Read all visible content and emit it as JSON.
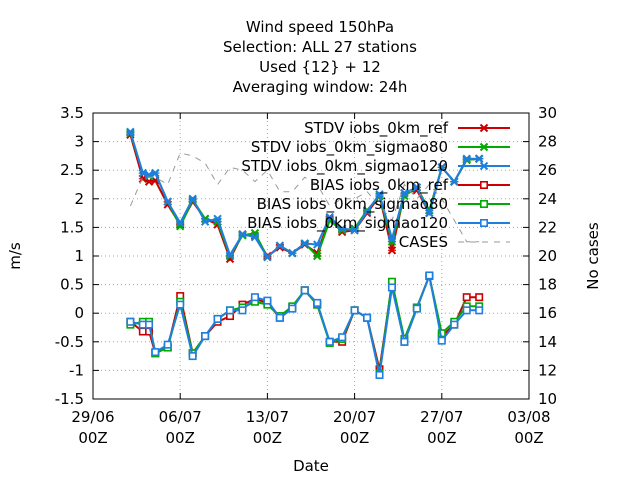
{
  "chart_data": {
    "type": "line",
    "title_lines": [
      "Wind speed 150hPa",
      "Selection: ALL      27 stations",
      "Used {12} + 12",
      "Averaging window: 24h"
    ],
    "xlabel": "Date",
    "ylabel": "m/s",
    "y2label": "No cases",
    "x_ticks": [
      {
        "x": 0,
        "line1": "29/06",
        "line2": "00Z"
      },
      {
        "x": 7,
        "line1": "06/07",
        "line2": "00Z"
      },
      {
        "x": 14,
        "line1": "13/07",
        "line2": "00Z"
      },
      {
        "x": 21,
        "line1": "20/07",
        "line2": "00Z"
      },
      {
        "x": 28,
        "line1": "27/07",
        "line2": "00Z"
      },
      {
        "x": 35,
        "line1": "03/08",
        "line2": "00Z"
      }
    ],
    "xlim": [
      0,
      35
    ],
    "ylim": [
      -1.5,
      3.5
    ],
    "y_ticks": [
      "-1.5",
      "-1",
      "-0.5",
      "0",
      "0.5",
      "1",
      "1.5",
      "2",
      "2.5",
      "3",
      "3.5"
    ],
    "y2lim": [
      10,
      30
    ],
    "y2_ticks": [
      "10",
      "12",
      "14",
      "16",
      "18",
      "20",
      "22",
      "24",
      "26",
      "28",
      "30"
    ],
    "grid": true,
    "legend_position": "top-right",
    "x": [
      3,
      4,
      4.5,
      5,
      6,
      7,
      8,
      9,
      10,
      11,
      12,
      13,
      14,
      15,
      16,
      17,
      18,
      19,
      20,
      21,
      22,
      23,
      24,
      25,
      26,
      27,
      28,
      29,
      30,
      31
    ],
    "series": [
      {
        "name": "STDV iobs_0km_ref",
        "axis": "y",
        "color": "#cc0000",
        "marker": "x",
        "values": [
          3.12,
          2.35,
          2.3,
          2.32,
          1.9,
          1.55,
          1.95,
          1.65,
          1.55,
          0.95,
          1.38,
          1.35,
          1.0,
          1.15,
          1.05,
          1.2,
          1.05,
          1.65,
          1.42,
          1.45,
          1.75,
          2.05,
          1.1,
          2.1,
          2.15,
          1.75,
          2.55,
          2.3,
          2.68,
          2.7
        ]
      },
      {
        "name": "STDV iobs_0km_sigmao80",
        "axis": "y",
        "color": "#00aa00",
        "marker": "x",
        "values": [
          3.15,
          2.45,
          2.4,
          2.45,
          1.95,
          1.52,
          1.98,
          1.65,
          1.6,
          1.0,
          1.36,
          1.4,
          0.98,
          1.18,
          1.05,
          1.22,
          1.0,
          1.62,
          1.45,
          1.48,
          1.8,
          2.05,
          1.25,
          2.05,
          2.2,
          1.8,
          2.55,
          2.3,
          2.68,
          2.7
        ]
      },
      {
        "name": "STDV iobs_0km_sigmao120",
        "axis": "y",
        "color": "#1e7fe0",
        "marker": "x",
        "values": [
          3.17,
          2.45,
          2.42,
          2.45,
          1.95,
          1.58,
          2.0,
          1.6,
          1.65,
          1.02,
          1.38,
          1.33,
          0.98,
          1.18,
          1.05,
          1.22,
          1.2,
          1.68,
          1.48,
          1.45,
          1.78,
          2.08,
          1.3,
          2.1,
          2.2,
          1.75,
          2.55,
          2.3,
          2.7,
          2.7
        ]
      },
      {
        "name": "BIAS iobs_0km_ref",
        "axis": "y",
        "color": "#cc0000",
        "marker": "square",
        "values": [
          -0.15,
          -0.32,
          -0.32,
          -0.7,
          -0.6,
          0.3,
          -0.7,
          -0.4,
          -0.15,
          -0.05,
          0.15,
          0.25,
          0.18,
          -0.08,
          0.1,
          0.4,
          0.15,
          -0.5,
          -0.5,
          0.05,
          -0.08,
          -0.98,
          0.52,
          -0.5,
          0.1,
          0.65,
          -0.4,
          -0.2,
          0.28,
          0.28
        ]
      },
      {
        "name": "BIAS iobs_0km_sigmao80",
        "axis": "y",
        "color": "#00aa00",
        "marker": "square",
        "values": [
          -0.2,
          -0.15,
          -0.15,
          -0.7,
          -0.6,
          0.2,
          -0.7,
          -0.4,
          -0.1,
          0.05,
          0.1,
          0.2,
          0.15,
          -0.05,
          0.12,
          0.4,
          0.15,
          -0.52,
          -0.45,
          0.05,
          -0.08,
          -1.05,
          0.55,
          -0.45,
          0.1,
          0.65,
          -0.35,
          -0.15,
          0.12,
          0.12
        ]
      },
      {
        "name": "BIAS iobs_0km_sigmao120",
        "axis": "y",
        "color": "#1e7fe0",
        "marker": "square",
        "values": [
          -0.15,
          -0.2,
          -0.2,
          -0.68,
          -0.55,
          0.15,
          -0.75,
          -0.4,
          -0.1,
          0.05,
          0.05,
          0.28,
          0.22,
          -0.08,
          0.08,
          0.4,
          0.18,
          -0.5,
          -0.42,
          0.05,
          -0.08,
          -1.08,
          0.45,
          -0.5,
          0.08,
          0.66,
          -0.48,
          -0.2,
          0.05,
          0.05
        ]
      },
      {
        "name": "CASES",
        "axis": "y2",
        "color": "#999999",
        "marker": "none",
        "dashed": true,
        "values": [
          23.5,
          25.5,
          25.5,
          25.5,
          25,
          27.2,
          27.0,
          26.5,
          25.0,
          26.2,
          26.0,
          25.2,
          26.0,
          24.5,
          24.5,
          25.5,
          25.0,
          23.5,
          24.0,
          24.0,
          24.5,
          23.5,
          22.5,
          25.0,
          24.0,
          25.0,
          24.0,
          22.5,
          21.0,
          21.0
        ]
      }
    ]
  }
}
